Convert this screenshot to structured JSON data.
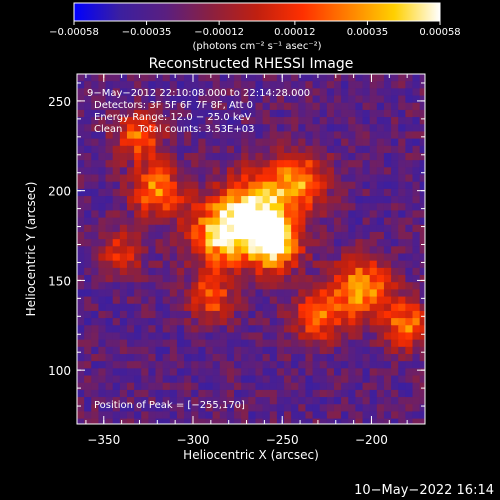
{
  "chart_data": {
    "type": "heatmap",
    "title": "Reconstructed RHESSI Image",
    "xlabel": "Heliocentric X (arcsec)",
    "ylabel": "Heliocentric Y (arcsec)",
    "xlim": [
      -365,
      -170
    ],
    "ylim": [
      70,
      265
    ],
    "xticks": [
      -350,
      -300,
      -250,
      -200
    ],
    "xtick_labels": [
      "−350",
      "−300",
      "−250",
      "−200"
    ],
    "yticks": [
      100,
      150,
      200,
      250
    ],
    "ytick_labels": [
      "100",
      "150",
      "200",
      "250"
    ],
    "colorbar": {
      "min": -0.00058,
      "max": 0.00058,
      "ticks": [
        -0.00058,
        -0.00035,
        -0.00012,
        0.00012,
        0.00035,
        0.00058
      ],
      "tick_labels": [
        "−0.00058",
        "−0.00035",
        "−0.00012",
        "0.00012",
        "0.00035",
        "0.00058"
      ],
      "unit_label": "(photons cm⁻² s⁻¹ asec⁻²)",
      "colormap": [
        "#0000ff",
        "#3b1fa0",
        "#5a1f80",
        "#8b2040",
        "#c02010",
        "#ff3000",
        "#ff8000",
        "#ffd000",
        "#ffffff"
      ]
    },
    "annotations": {
      "time_range": "9−May−2012 22:10:08.000 to 22:14:28.000",
      "detectors": "Detectors: 3F 5F 6F 7F 8F, Att 0",
      "energy": "Energy Range: 12.0 − 25.0 keV",
      "clean": "Clean     Total counts: 3.53E+03",
      "peak": "Position of Peak = [−255,170]"
    },
    "peak_position": [
      -255,
      170
    ],
    "image_sources": [
      {
        "x": -255,
        "y": 170,
        "value": 0.00058,
        "sigma": 10
      },
      {
        "x": -265,
        "y": 190,
        "value": 0.00044,
        "sigma": 14
      },
      {
        "x": -285,
        "y": 175,
        "value": 0.0004,
        "sigma": 13
      },
      {
        "x": -320,
        "y": 200,
        "value": 0.00033,
        "sigma": 10
      },
      {
        "x": -330,
        "y": 230,
        "value": 0.00026,
        "sigma": 9
      },
      {
        "x": -240,
        "y": 205,
        "value": 0.0003,
        "sigma": 11
      },
      {
        "x": -205,
        "y": 145,
        "value": 0.00036,
        "sigma": 12
      },
      {
        "x": -180,
        "y": 125,
        "value": 0.00026,
        "sigma": 9
      },
      {
        "x": -230,
        "y": 130,
        "value": 0.00022,
        "sigma": 10
      },
      {
        "x": -290,
        "y": 140,
        "value": 0.00018,
        "sigma": 9
      },
      {
        "x": -340,
        "y": 165,
        "value": 0.0001,
        "sigma": 9
      }
    ],
    "background_level": -0.0003
  },
  "footer": {
    "timestamp": "10−May−2022 16:14"
  }
}
